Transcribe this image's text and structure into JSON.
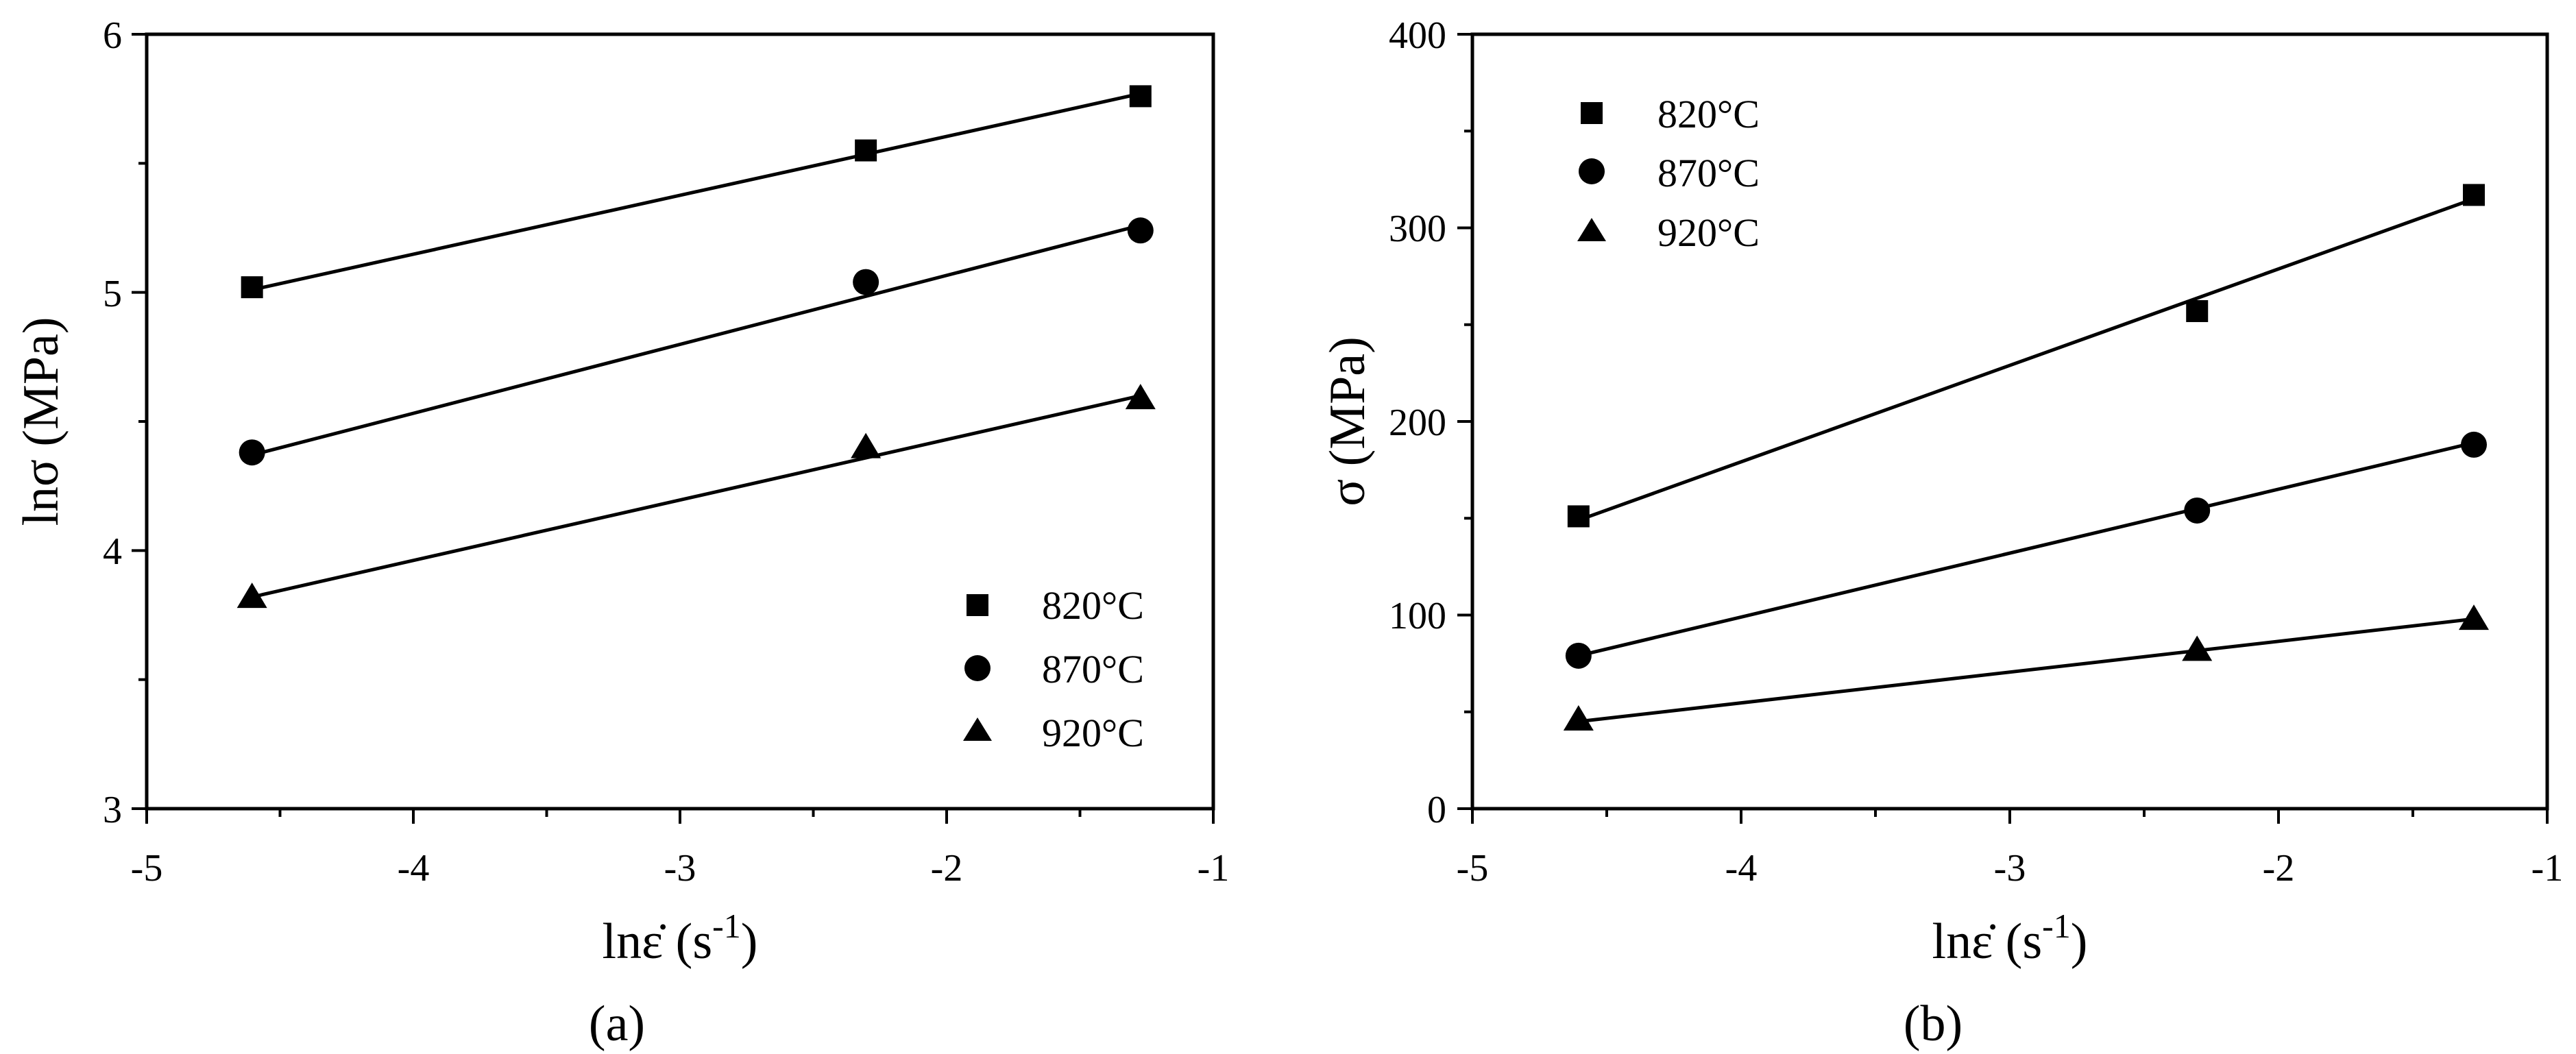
{
  "chart_data": [
    {
      "panel": "a",
      "type": "scatter",
      "fit": "linear",
      "panel_label": "(a)",
      "xlabel": "lnε̇ (s",
      "xlabel_sup": "-1",
      "xlabel_tail": ")",
      "ylabel": "lnσ (MPa)",
      "xlim": [
        -5,
        -1
      ],
      "ylim": [
        3,
        6
      ],
      "xticks": [
        -5,
        -4,
        -3,
        -2,
        -1
      ],
      "xtick_labels": [
        "-5",
        "-4",
        "-3",
        "-2",
        "-1"
      ],
      "yticks": [
        3,
        4,
        5,
        6
      ],
      "ytick_labels": [
        "3",
        "4",
        "5",
        "6"
      ],
      "legend_position": "bottom-right",
      "series": [
        {
          "name": "820°C",
          "marker": "square",
          "x": [
            -4.605,
            -2.303,
            -1.273
          ],
          "y": [
            5.02,
            5.55,
            5.76
          ],
          "fit": [
            [
              -4.605,
              5.01
            ],
            [
              -1.273,
              5.77
            ]
          ]
        },
        {
          "name": "870°C",
          "marker": "circle",
          "x": [
            -4.605,
            -2.303,
            -1.273
          ],
          "y": [
            4.38,
            5.04,
            5.24
          ],
          "fit": [
            [
              -4.605,
              4.37
            ],
            [
              -1.273,
              5.26
            ]
          ]
        },
        {
          "name": "920°C",
          "marker": "triangle",
          "x": [
            -4.605,
            -2.303,
            -1.273
          ],
          "y": [
            3.82,
            4.4,
            4.59
          ],
          "fit": [
            [
              -4.605,
              3.82
            ],
            [
              -1.273,
              4.6
            ]
          ]
        }
      ]
    },
    {
      "panel": "b",
      "type": "scatter",
      "fit": "linear",
      "panel_label": "(b)",
      "xlabel": "lnε̇ (s",
      "xlabel_sup": "-1",
      "xlabel_tail": ")",
      "ylabel": "σ (MPa)",
      "xlim": [
        -5,
        -1
      ],
      "ylim": [
        0,
        400
      ],
      "xticks": [
        -5,
        -4,
        -3,
        -2,
        -1
      ],
      "xtick_labels": [
        "-5",
        "-4",
        "-3",
        "-2",
        "-1"
      ],
      "yticks": [
        0,
        100,
        200,
        300,
        400
      ],
      "ytick_labels": [
        "0",
        "100",
        "200",
        "300",
        "400"
      ],
      "legend_position": "top-left",
      "series": [
        {
          "name": "820°C",
          "marker": "square",
          "x": [
            -4.605,
            -2.303,
            -1.273
          ],
          "y": [
            151,
            257,
            317
          ],
          "fit": [
            [
              -4.605,
              149
            ],
            [
              -1.273,
              315
            ]
          ]
        },
        {
          "name": "870°C",
          "marker": "circle",
          "x": [
            -4.605,
            -2.303,
            -1.273
          ],
          "y": [
            79,
            154,
            188
          ],
          "fit": [
            [
              -4.605,
              79
            ],
            [
              -1.273,
              189
            ]
          ]
        },
        {
          "name": "920°C",
          "marker": "triangle",
          "x": [
            -4.605,
            -2.303,
            -1.273
          ],
          "y": [
            46,
            82,
            98
          ],
          "fit": [
            [
              -4.605,
              45
            ],
            [
              -1.273,
              98
            ]
          ]
        }
      ]
    }
  ]
}
